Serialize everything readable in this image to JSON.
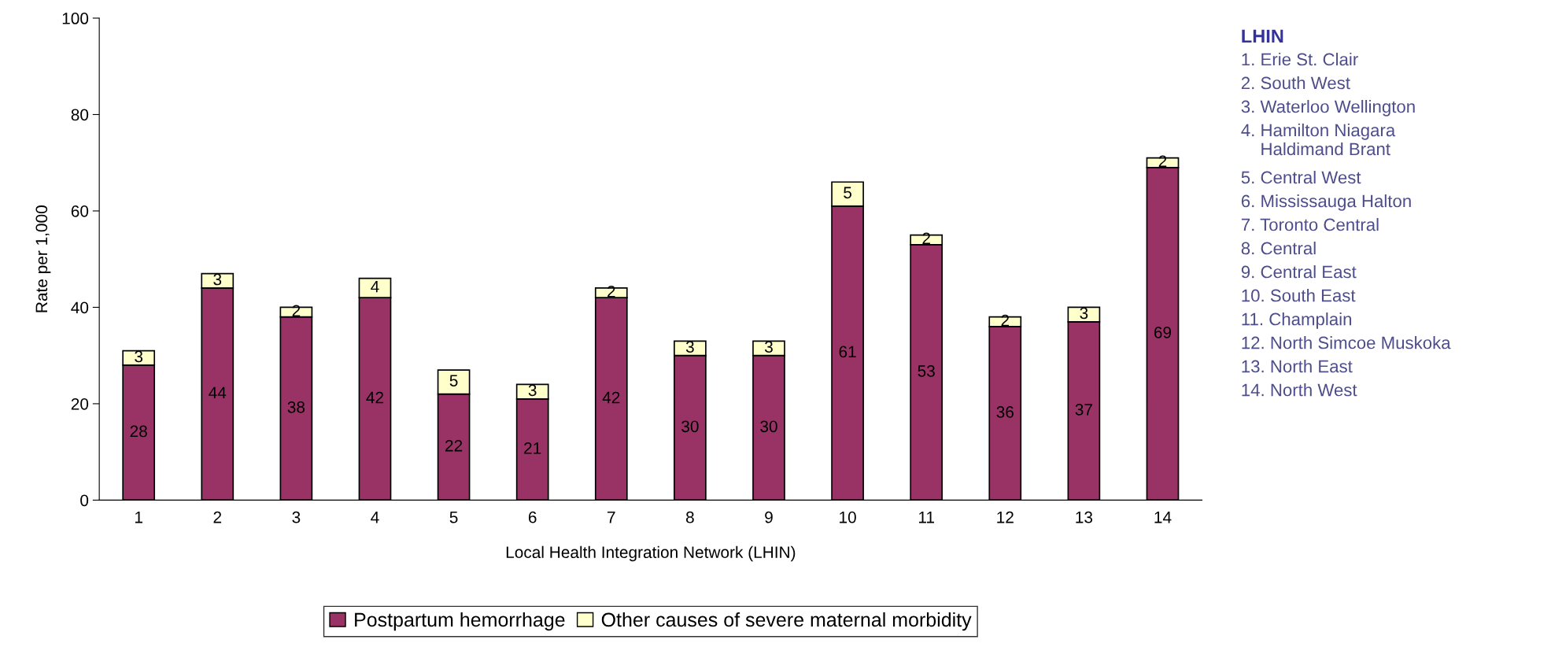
{
  "chart_data": {
    "type": "bar",
    "stacked": true,
    "xlabel": "Local Health Integration Network (LHIN)",
    "ylabel": "Rate per 1,000",
    "categories": [
      "1",
      "2",
      "3",
      "4",
      "5",
      "6",
      "7",
      "8",
      "9",
      "10",
      "11",
      "12",
      "13",
      "14"
    ],
    "series": [
      {
        "name": "Postpartum hemorrhage",
        "color": "#993366",
        "values": [
          28,
          44,
          38,
          42,
          22,
          21,
          42,
          30,
          30,
          61,
          53,
          36,
          37,
          69
        ]
      },
      {
        "name": "Other causes of severe maternal morbidity",
        "color": "#ffffcc",
        "values": [
          3,
          3,
          2,
          4,
          5,
          3,
          2,
          3,
          3,
          5,
          2,
          2,
          3,
          2
        ]
      }
    ],
    "ylim": [
      0,
      100
    ],
    "yticks": [
      0,
      20,
      40,
      60,
      80,
      100
    ],
    "data_labels": true,
    "grid": false,
    "legend": "bottom",
    "annotations": [
      "LHIN",
      "1. Erie St. Clair",
      "2. South West",
      "3. Waterloo Wellington",
      "4. Hamilton Niagara\n    Haldimand Brant",
      "5. Central West",
      "6. Mississauga Halton",
      "7. Toronto Central",
      "8. Central",
      "9. Central East",
      "10. South East",
      "11. Champlain",
      "12. North Simcoe Muskoka",
      "13. North East",
      "14. North West"
    ]
  }
}
